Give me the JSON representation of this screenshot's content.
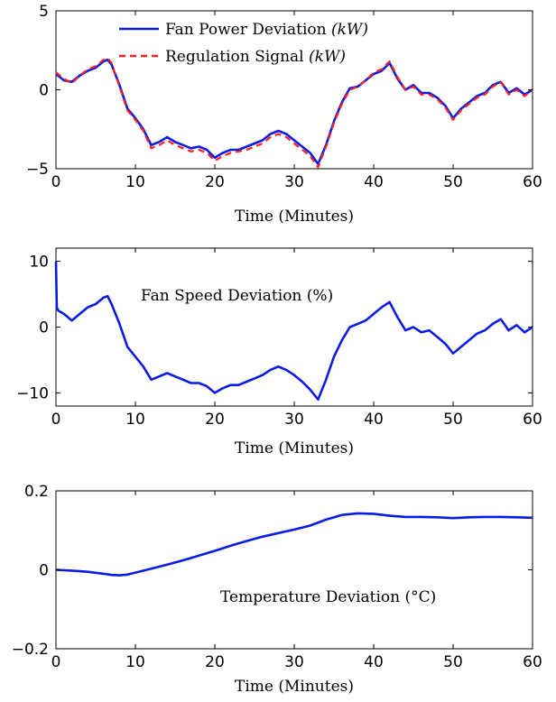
{
  "chart_data": [
    {
      "type": "line",
      "xlabel": "Time (Minutes)",
      "ylabel": "",
      "xlim": [
        0,
        60
      ],
      "ylim": [
        -5,
        5
      ],
      "xticks": [
        0,
        10,
        20,
        30,
        40,
        50,
        60
      ],
      "yticks": [
        -5,
        0,
        5
      ],
      "grid": false,
      "legend_position": "top-center",
      "series": [
        {
          "name": "Fan Power Deviation",
          "unit": "(kW)",
          "color": "#0a1be6",
          "style": "solid",
          "x": [
            0,
            1,
            2,
            3,
            4,
            5,
            6,
            6.5,
            7,
            8,
            9,
            10,
            11,
            12,
            13,
            14,
            15,
            16,
            17,
            18,
            19,
            20,
            21,
            22,
            23,
            24,
            25,
            26,
            27,
            28,
            29,
            30,
            31,
            32,
            33,
            34,
            35,
            36,
            37,
            38,
            39,
            40,
            41,
            42,
            43,
            44,
            45,
            46,
            47,
            48,
            49,
            50,
            51,
            52,
            53,
            54,
            55,
            56,
            57,
            58,
            59,
            60
          ],
          "values": [
            1.0,
            0.6,
            0.5,
            0.9,
            1.2,
            1.4,
            1.8,
            1.9,
            1.6,
            0.3,
            -1.2,
            -1.8,
            -2.5,
            -3.5,
            -3.3,
            -3.0,
            -3.3,
            -3.5,
            -3.7,
            -3.6,
            -3.8,
            -4.3,
            -4.0,
            -3.8,
            -3.8,
            -3.6,
            -3.4,
            -3.2,
            -2.8,
            -2.6,
            -2.8,
            -3.2,
            -3.6,
            -4.0,
            -4.7,
            -3.5,
            -2.0,
            -0.8,
            0.1,
            0.2,
            0.6,
            1.0,
            1.2,
            1.7,
            0.7,
            0.0,
            0.3,
            -0.2,
            -0.2,
            -0.5,
            -1.0,
            -1.8,
            -1.2,
            -0.8,
            -0.4,
            -0.2,
            0.3,
            0.5,
            -0.2,
            0.1,
            -0.3,
            0.0
          ]
        },
        {
          "name": "Regulation Signal",
          "unit": "(kW)",
          "color": "#ff1f1f",
          "style": "dashed",
          "x": [
            0,
            1,
            2,
            3,
            4,
            5,
            6,
            6.5,
            7,
            8,
            9,
            10,
            11,
            12,
            13,
            14,
            15,
            16,
            17,
            18,
            19,
            20,
            21,
            22,
            23,
            24,
            25,
            26,
            27,
            28,
            29,
            30,
            31,
            32,
            33,
            34,
            35,
            36,
            37,
            38,
            39,
            40,
            41,
            42,
            43,
            44,
            45,
            46,
            47,
            48,
            49,
            50,
            51,
            52,
            53,
            54,
            55,
            56,
            57,
            58,
            59,
            60
          ],
          "values": [
            1.1,
            0.7,
            0.4,
            0.9,
            1.3,
            1.5,
            1.9,
            2.0,
            1.7,
            0.2,
            -1.3,
            -1.9,
            -2.6,
            -3.7,
            -3.5,
            -3.2,
            -3.5,
            -3.7,
            -3.9,
            -3.8,
            -4.0,
            -4.5,
            -4.2,
            -4.0,
            -3.9,
            -3.8,
            -3.6,
            -3.4,
            -3.0,
            -2.8,
            -3.0,
            -3.4,
            -3.8,
            -4.2,
            -4.9,
            -3.6,
            -2.1,
            -0.9,
            0.0,
            0.2,
            0.6,
            1.1,
            1.3,
            1.8,
            0.8,
            0.0,
            0.2,
            -0.3,
            -0.3,
            -0.6,
            -1.1,
            -1.9,
            -1.3,
            -0.9,
            -0.5,
            -0.3,
            0.2,
            0.5,
            -0.3,
            0.0,
            -0.4,
            0.0
          ]
        }
      ]
    },
    {
      "type": "line",
      "xlabel": "Time (Minutes)",
      "ylabel": "",
      "xlim": [
        0,
        60
      ],
      "ylim": [
        -12,
        12
      ],
      "xticks": [
        0,
        10,
        20,
        30,
        40,
        50,
        60
      ],
      "yticks": [
        -10,
        0,
        10
      ],
      "grid": false,
      "annotation": "Fan Speed Deviation (%)",
      "series": [
        {
          "name": "",
          "color": "#0a1be6",
          "style": "solid",
          "x": [
            0,
            0.1,
            0.3,
            1,
            2,
            3,
            4,
            5,
            6,
            6.5,
            7,
            8,
            9,
            10,
            11,
            12,
            13,
            14,
            15,
            16,
            17,
            18,
            19,
            20,
            21,
            22,
            23,
            24,
            25,
            26,
            27,
            28,
            29,
            30,
            31,
            32,
            33,
            34,
            35,
            36,
            37,
            38,
            39,
            40,
            41,
            42,
            43,
            44,
            45,
            46,
            47,
            48,
            49,
            50,
            51,
            52,
            53,
            54,
            55,
            56,
            57,
            58,
            59,
            60
          ],
          "values": [
            10.0,
            3.0,
            2.5,
            2.0,
            1.0,
            2.0,
            3.0,
            3.5,
            4.5,
            4.7,
            3.5,
            0.5,
            -3.0,
            -4.5,
            -6.0,
            -8.0,
            -7.5,
            -7.0,
            -7.5,
            -8.0,
            -8.5,
            -8.5,
            -9.0,
            -10.0,
            -9.3,
            -8.8,
            -8.8,
            -8.3,
            -7.8,
            -7.3,
            -6.5,
            -6.0,
            -6.5,
            -7.3,
            -8.3,
            -9.5,
            -11.0,
            -8.0,
            -4.5,
            -2.0,
            0.0,
            0.5,
            1.0,
            2.0,
            3.0,
            3.8,
            1.5,
            -0.5,
            0.0,
            -0.8,
            -0.5,
            -1.5,
            -2.5,
            -4.0,
            -3.0,
            -2.0,
            -1.0,
            -0.5,
            0.5,
            1.2,
            -0.5,
            0.3,
            -0.8,
            0.0
          ]
        }
      ]
    },
    {
      "type": "line",
      "xlabel": "Time (Minutes)",
      "ylabel": "",
      "xlim": [
        0,
        60
      ],
      "ylim": [
        -0.2,
        0.2
      ],
      "xticks": [
        0,
        10,
        20,
        30,
        40,
        50,
        60
      ],
      "yticks": [
        -0.2,
        0,
        0.2
      ],
      "grid": false,
      "annotation": "Temperature Deviation (°C)",
      "series": [
        {
          "name": "",
          "color": "#0a1be6",
          "style": "solid",
          "x": [
            0,
            2,
            4,
            6,
            7,
            8,
            9,
            10,
            12,
            14,
            16,
            18,
            20,
            22,
            24,
            26,
            28,
            30,
            32,
            34,
            36,
            38,
            40,
            42,
            44,
            46,
            48,
            50,
            52,
            54,
            56,
            58,
            60
          ],
          "values": [
            0.0,
            -0.002,
            -0.005,
            -0.01,
            -0.013,
            -0.014,
            -0.012,
            -0.007,
            0.003,
            0.013,
            0.024,
            0.036,
            0.048,
            0.061,
            0.073,
            0.084,
            0.093,
            0.102,
            0.112,
            0.127,
            0.139,
            0.143,
            0.142,
            0.137,
            0.134,
            0.134,
            0.133,
            0.131,
            0.133,
            0.134,
            0.134,
            0.133,
            0.132
          ]
        }
      ]
    }
  ]
}
